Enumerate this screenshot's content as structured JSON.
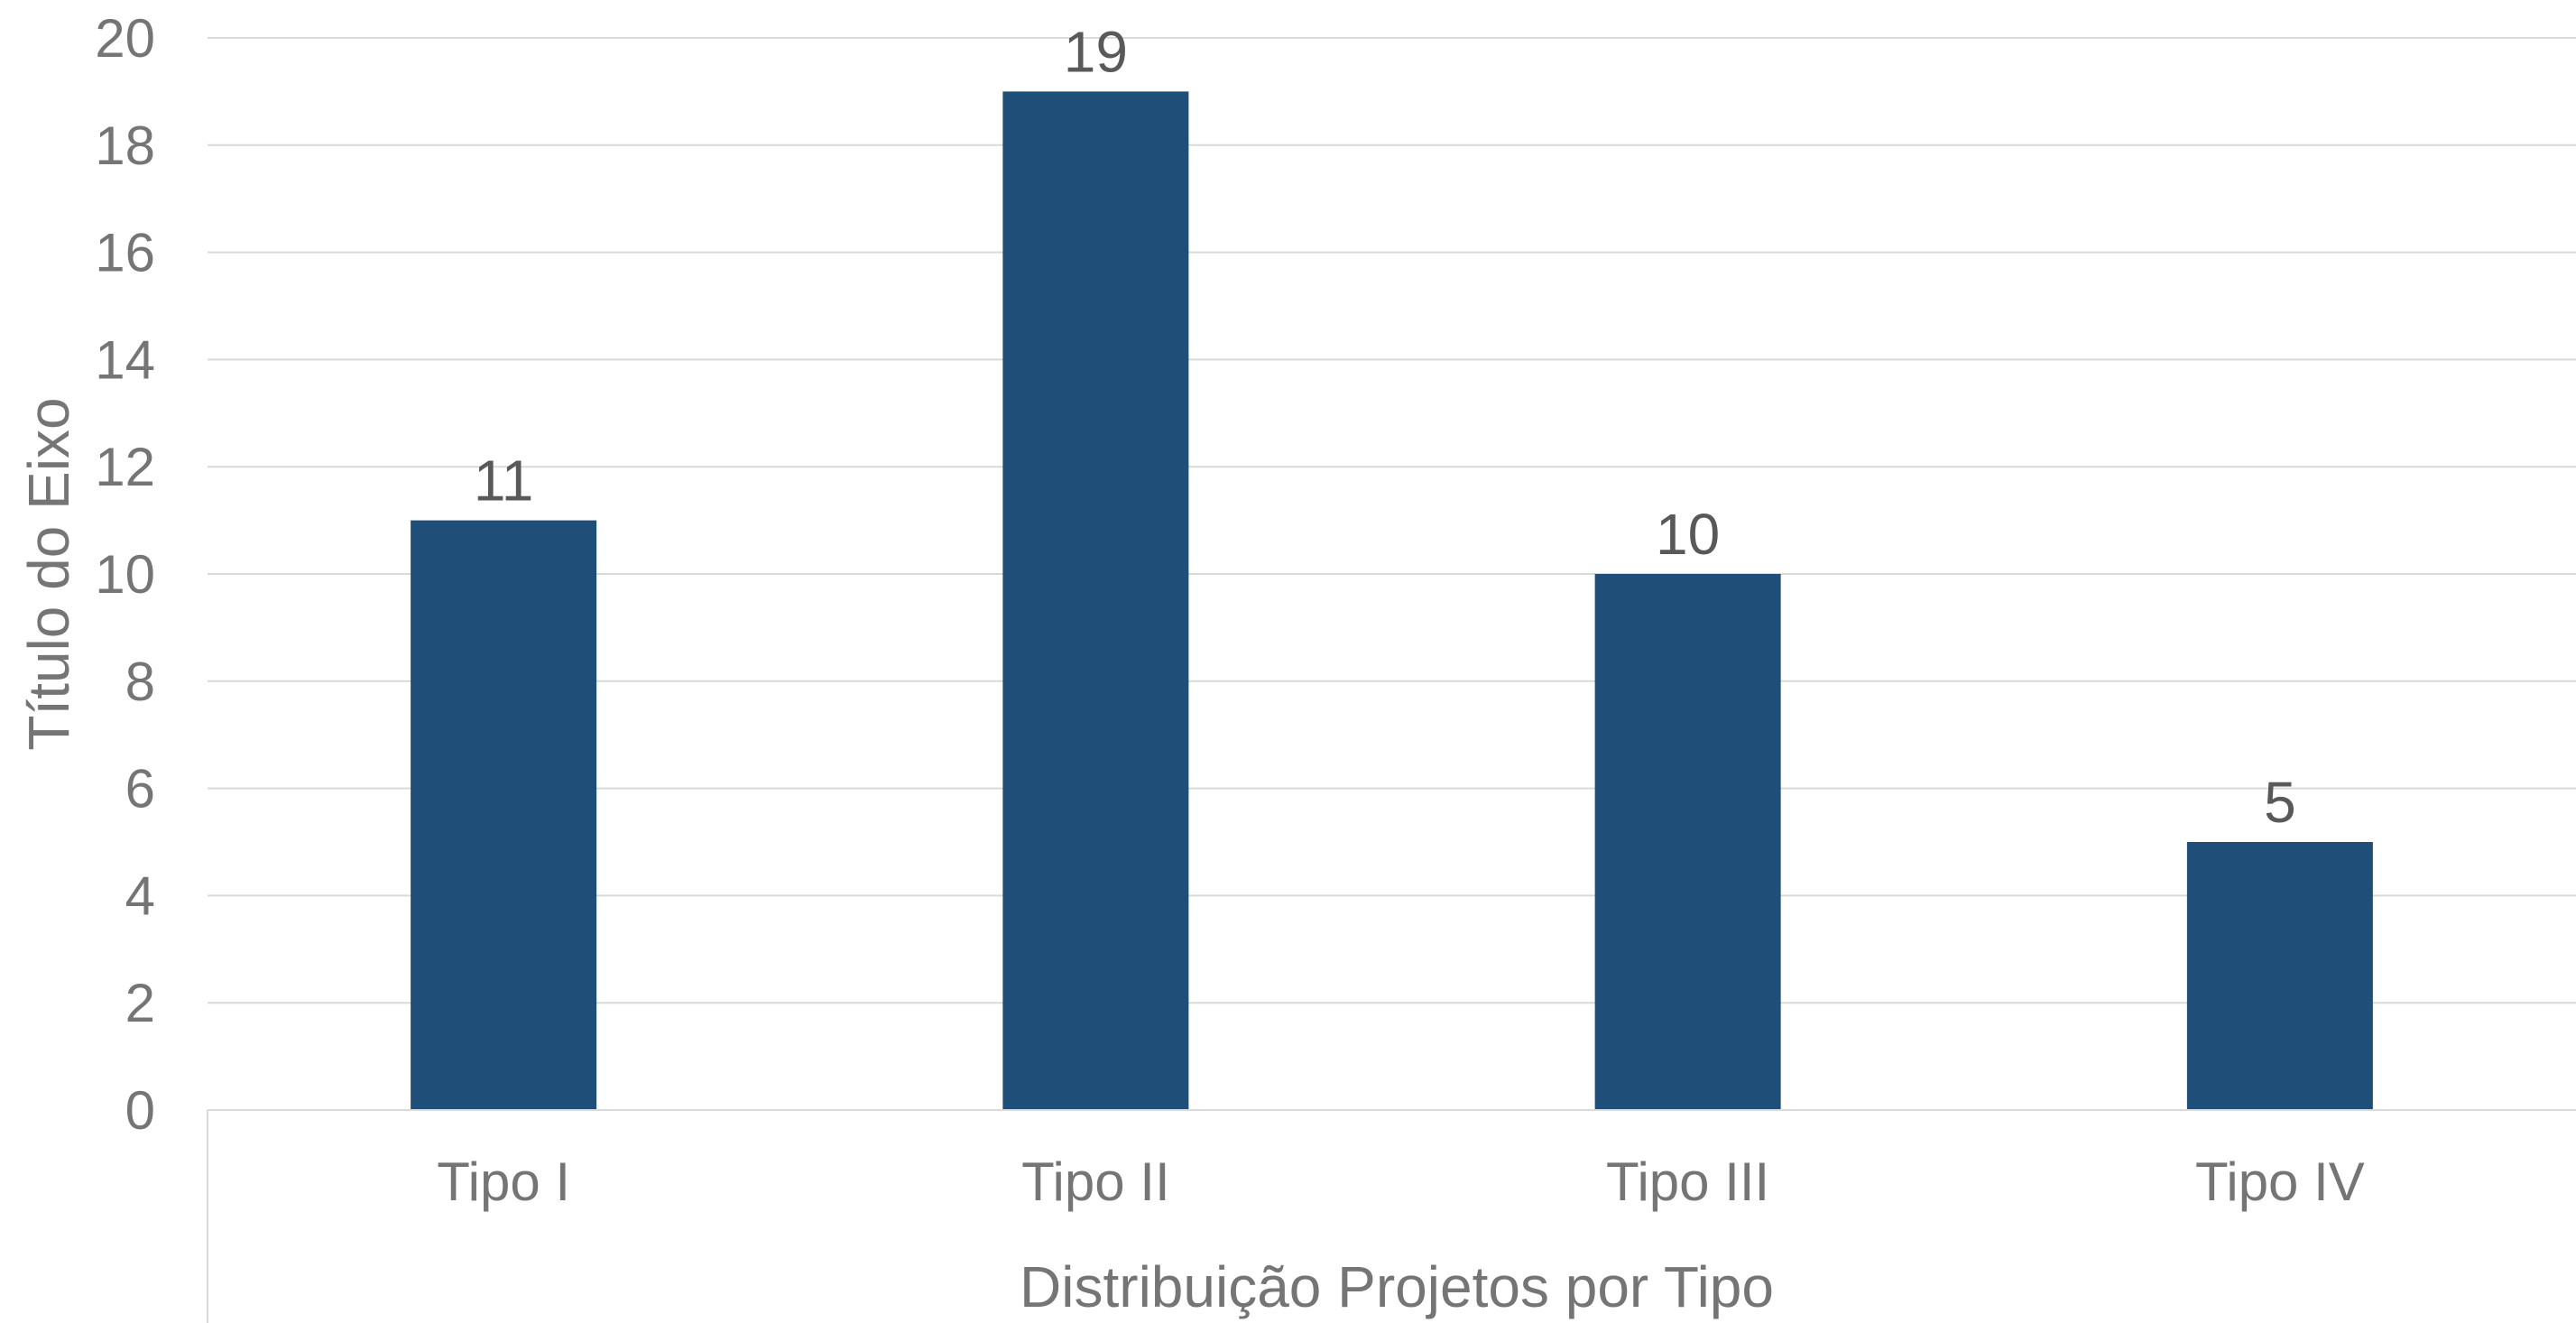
{
  "chart_data": {
    "type": "bar",
    "categories": [
      "Tipo I",
      "Tipo II",
      "Tipo III",
      "Tipo IV"
    ],
    "values": [
      11,
      19,
      10,
      5
    ],
    "data_labels": [
      "11",
      "19",
      "10",
      "5"
    ],
    "xlabel": "Distribuição Projetos por Tipo",
    "ylabel": "Título do Eixo",
    "ylim": [
      0,
      20
    ],
    "yticks": [
      "0",
      "2",
      "4",
      "6",
      "8",
      "10",
      "12",
      "14",
      "16",
      "18",
      "20"
    ],
    "grid": true,
    "legend": "none",
    "bar_color": "#1f4e79"
  }
}
